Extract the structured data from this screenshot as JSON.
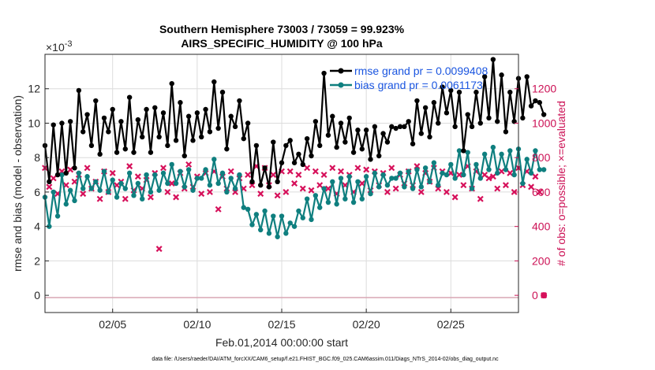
{
  "chart_data": {
    "type": "line",
    "title": [
      "Southern Hemisphere 73003 / 73059 = 99.923%",
      "AIRS_SPECIFIC_HUMIDITY @ 100 hPa"
    ],
    "xlabel": "Feb.01,2014 00:00:00 start",
    "ylabel": "rmse and bias (model - observation)",
    "ylabel_right": "# of obs: o=possible; ×=evaluated",
    "y_exponent_label": "×10",
    "y_exponent_power": "-3",
    "xlim": [
      1,
      29
    ],
    "ylim": [
      -1,
      14
    ],
    "ylim_right": [
      -100,
      1400
    ],
    "x_ticks": [
      5,
      10,
      15,
      20,
      25
    ],
    "x_tick_labels": [
      "02/05",
      "02/10",
      "02/15",
      "02/20",
      "02/25"
    ],
    "y_ticks": [
      0,
      2,
      4,
      6,
      8,
      10,
      12
    ],
    "y_tick_labels": [
      "0",
      "2",
      "4",
      "6",
      "8",
      "10",
      "12"
    ],
    "y_right_ticks": [
      0,
      200,
      400,
      600,
      800,
      1000,
      1200
    ],
    "y_right_tick_labels": [
      "0",
      "200",
      "400",
      "600",
      "800",
      "1000",
      "1200"
    ],
    "grid": true,
    "legend_position": "top-right",
    "footnote": "data file: /Users/raeder/DAI/ATM_forcXX/CAM6_setup/f.e21.FHIST_BGC.f09_025.CAM6assim.011/Diags_NTrS_2014-02/obs_diag_output.nc",
    "colors": {
      "rmse": "#000000",
      "bias": "#0f7f7f",
      "obs": "#d6105a",
      "legend_text": "#1a55e0",
      "axis_right": "#cc1155"
    },
    "series": [
      {
        "name": "rmse grand pr = 0.0099408",
        "axis": "left",
        "x_start": 1.0,
        "x_step": 0.25,
        "values": [
          8.7,
          6.6,
          9.9,
          7.0,
          10.0,
          7.1,
          10.1,
          7.4,
          11.9,
          9.5,
          10.5,
          8.7,
          11.3,
          8.2,
          10.3,
          9.5,
          10.8,
          8.3,
          10.1,
          8.5,
          11.5,
          8.3,
          10.2,
          9.2,
          10.8,
          8.3,
          10.9,
          9.2,
          10.6,
          8.7,
          12.3,
          9.0,
          11.2,
          8.1,
          10.4,
          9.0,
          10.6,
          9.2,
          10.8,
          9.5,
          12.4,
          9.7,
          11.8,
          8.5,
          10.4,
          9.8,
          11.3,
          9.1,
          10.0,
          6.6,
          8.7,
          6.4,
          7.4,
          6.3,
          8.9,
          6.6,
          7.7,
          8.7,
          9.0,
          7.7,
          8.2,
          7.6,
          9.1,
          8.1,
          10.1,
          8.7,
          12.9,
          9.3,
          10.4,
          8.6,
          10.0,
          8.9,
          10.3,
          8.3,
          9.6,
          8.5,
          9.6,
          7.9,
          9.8,
          8.1,
          9.4,
          8.9,
          9.8,
          9.7,
          9.8,
          9.8,
          10.1,
          8.8,
          11.3,
          9.4,
          10.9,
          9.2,
          11.2,
          10.0,
          12.1,
          10.6,
          11.9,
          9.8,
          11.8,
          8.4,
          10.5,
          9.8,
          11.8,
          10.0,
          12.7,
          10.3,
          13.7,
          10.1,
          12.8,
          9.5,
          11.8,
          10.1,
          12.6,
          10.3,
          12.7,
          11.0,
          11.3,
          11.2,
          10.5
        ]
      },
      {
        "name": "bias grand pr = 0.0061173",
        "axis": "left",
        "x_start": 1.0,
        "x_step": 0.25,
        "values": [
          5.7,
          4.0,
          6.0,
          4.6,
          7.0,
          5.3,
          6.1,
          5.5,
          7.1,
          6.2,
          6.9,
          6.2,
          6.6,
          6.1,
          7.2,
          6.0,
          6.7,
          5.7,
          6.5,
          6.2,
          7.1,
          5.8,
          6.5,
          5.6,
          7.0,
          6.0,
          7.0,
          6.1,
          7.1,
          6.5,
          7.6,
          6.5,
          7.2,
          6.3,
          7.3,
          6.1,
          6.8,
          6.8,
          7.3,
          6.4,
          7.9,
          6.5,
          7.1,
          6.0,
          6.8,
          6.2,
          7.0,
          5.1,
          5.0,
          4.1,
          4.7,
          3.8,
          4.9,
          3.6,
          4.6,
          3.4,
          4.6,
          3.6,
          4.2,
          4.0,
          4.9,
          4.5,
          5.6,
          4.4,
          5.8,
          5.1,
          6.2,
          5.4,
          6.6,
          5.3,
          6.8,
          5.6,
          6.9,
          5.4,
          6.6,
          5.6,
          6.9,
          5.9,
          7.1,
          6.3,
          7.0,
          6.4,
          6.8,
          6.8,
          7.1,
          6.3,
          7.2,
          6.2,
          7.3,
          6.3,
          7.4,
          6.6,
          7.7,
          6.4,
          7.1,
          7.0,
          7.6,
          6.8,
          8.4,
          7.0,
          8.3,
          6.2,
          7.6,
          6.8,
          8.2,
          7.3,
          8.6,
          7.1,
          8.2,
          7.3,
          8.4,
          7.0,
          8.5,
          6.5,
          7.9,
          7.1,
          8.4,
          7.3,
          7.3
        ]
      },
      {
        "name": "possible",
        "axis": "right",
        "marker": "circle",
        "x_start": 1.0,
        "x_step": 0.25,
        "values": []
      },
      {
        "name": "evaluated",
        "axis": "right",
        "marker": "x",
        "x_start": 1.0,
        "x_step": 0.25,
        "values": [
          740,
          630,
          680,
          590,
          720,
          640,
          730,
          660,
          700,
          590,
          740,
          620,
          660,
          560,
          720,
          600,
          710,
          640,
          660,
          560,
          750,
          610,
          690,
          620,
          670,
          570,
          710,
          270,
          740,
          600,
          650,
          570,
          710,
          620,
          760,
          630,
          690,
          590,
          710,
          600,
          720,
          500,
          690,
          620,
          720,
          600,
          680,
          620,
          700,
          640,
          750,
          590,
          740,
          640,
          700,
          580,
          720,
          600,
          720,
          650,
          700,
          620,
          740,
          610,
          720,
          640,
          700,
          620,
          740,
          590,
          720,
          640,
          700,
          600,
          740,
          650,
          730,
          610,
          720,
          640,
          710,
          600,
          740,
          620,
          700,
          650,
          720,
          640,
          750,
          600,
          710,
          660,
          740,
          620,
          720,
          600,
          710,
          570,
          700,
          640,
          750,
          620,
          720,
          560,
          700,
          680,
          690,
          620,
          720,
          640,
          710,
          600,
          740,
          640,
          720,
          630,
          690,
          600,
          0
        ]
      }
    ]
  }
}
